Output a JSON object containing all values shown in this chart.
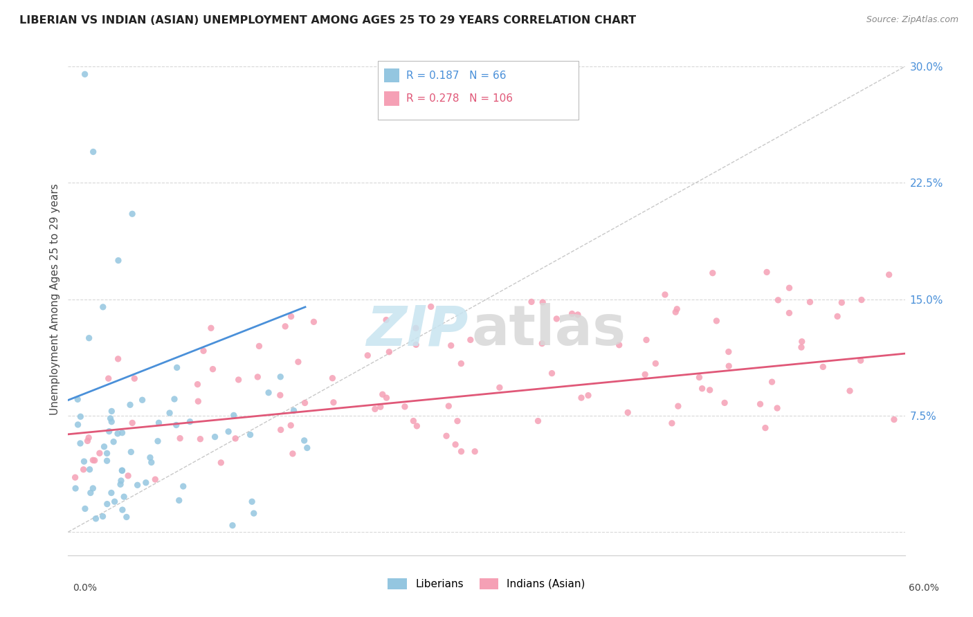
{
  "title": "LIBERIAN VS INDIAN (ASIAN) UNEMPLOYMENT AMONG AGES 25 TO 29 YEARS CORRELATION CHART",
  "source": "Source: ZipAtlas.com",
  "ylabel": "Unemployment Among Ages 25 to 29 years",
  "xlim": [
    0.0,
    0.6
  ],
  "ylim": [
    -0.015,
    0.315
  ],
  "yticks": [
    0.0,
    0.075,
    0.15,
    0.225,
    0.3
  ],
  "ytick_labels": [
    "",
    "7.5%",
    "15.0%",
    "22.5%",
    "30.0%"
  ],
  "liberian_color": "#94c6e0",
  "indian_color": "#f5a0b5",
  "liberian_line_color": "#4a90d9",
  "indian_line_color": "#e05878",
  "liberian_R": 0.187,
  "liberian_N": 66,
  "indian_R": 0.278,
  "indian_N": 106,
  "background_color": "#ffffff",
  "grid_color": "#d8d8d8",
  "ref_line_color": "#bbbbbb",
  "watermark_zip_color": "#c8e4f0",
  "watermark_atlas_color": "#d8d8d8"
}
